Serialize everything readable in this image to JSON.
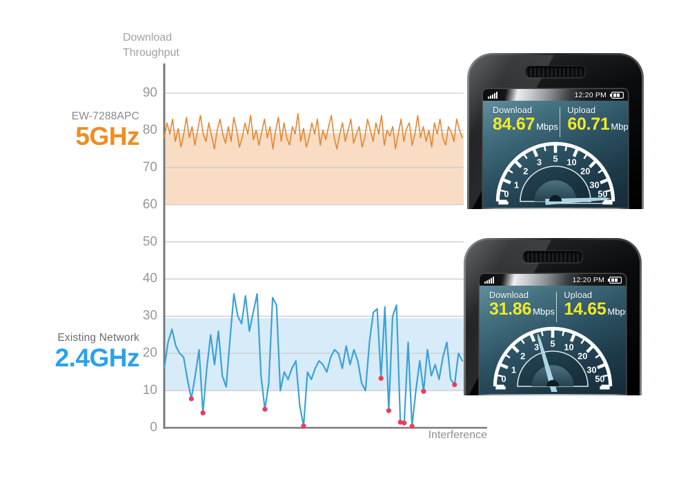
{
  "labels": {
    "y_axis_title_line1": "Download",
    "y_axis_title_line2": "Throughput",
    "x_axis_title": "Interference",
    "series1_model": "EW-7288APC",
    "series1_band": "5GHz",
    "series2_name": "Existing Network",
    "series2_band": "2.4GHz"
  },
  "colors": {
    "series1_accent": "#f18c1e",
    "series2_accent": "#2ba1ea",
    "grid": "#c9cccf",
    "axis": "#77797b",
    "tick_text": "#94979b",
    "value_text": "#f2e926"
  },
  "chart_data": {
    "type": "line",
    "ylabel": "Download Throughput",
    "xlabel": "Interference",
    "yticks": [
      0,
      10,
      20,
      30,
      40,
      50,
      60,
      70,
      80,
      90
    ],
    "ylim": [
      0,
      95
    ],
    "grid": "horizontal",
    "legend_position": "left",
    "series": [
      {
        "name": "EW-7288APC 5GHz",
        "color": "#e8842c",
        "line_width": 1.6,
        "fill_band": [
          60,
          79.3
        ],
        "fill_color": "#f8dcc4",
        "values": [
          78,
          82,
          79,
          83,
          77,
          80.5,
          75.5,
          79,
          83.5,
          78,
          81,
          76,
          80,
          84,
          79,
          77,
          82,
          78.5,
          75,
          80,
          83,
          79,
          76.5,
          81,
          77,
          83.5,
          80,
          75.5,
          78,
          82,
          79,
          84,
          77.5,
          80,
          76,
          79.5,
          83,
          78,
          81,
          75,
          80,
          83.5,
          77,
          82,
          78,
          76,
          81,
          79,
          84.5,
          77,
          80.5,
          75.5,
          78,
          82,
          79,
          83,
          76,
          80,
          77.5,
          81,
          84,
          78,
          75,
          79,
          82,
          77,
          80,
          83,
          76.5,
          79,
          81,
          75.5,
          78,
          83,
          80,
          77,
          82,
          79,
          84,
          76,
          80,
          78.5,
          81,
          75,
          79,
          83,
          77,
          80.5,
          82,
          76,
          79,
          84,
          78,
          81,
          77,
          80,
          75.5,
          82,
          79,
          83,
          78,
          76,
          81,
          79.5,
          77,
          83,
          80,
          78
        ]
      },
      {
        "name": "Existing Network 2.4GHz",
        "color": "#3aa1d9",
        "line_width": 2.2,
        "fill_band": [
          10,
          29.5
        ],
        "fill_color": "#d8ebf8",
        "values": [
          16,
          23,
          26.5,
          22,
          20,
          19,
          13,
          7.8,
          14,
          21,
          4,
          16,
          25,
          17,
          26,
          14,
          11,
          24,
          36,
          30,
          28,
          35.5,
          26,
          31,
          36,
          14,
          5,
          12,
          35,
          33,
          10,
          15,
          13,
          16,
          18,
          6,
          0.5,
          15,
          13,
          16,
          18,
          17,
          15,
          19,
          21,
          20,
          16,
          22,
          17,
          21,
          18,
          12,
          10,
          23,
          31,
          32,
          13.3,
          32.5,
          4.6,
          30,
          33,
          1.5,
          1.3,
          23,
          0.4,
          10,
          18,
          9.8,
          21,
          14,
          17,
          13,
          19,
          23,
          13,
          11.6,
          20,
          18
        ],
        "marker_indices": [
          7,
          10,
          26,
          36,
          56,
          58,
          61,
          62,
          64,
          67,
          75
        ],
        "marker_color": "#ee3a5f"
      }
    ]
  },
  "phones": [
    {
      "time": "12:20 PM",
      "download_label": "Download",
      "download_value": "84.67",
      "upload_label": "Upload",
      "upload_value": "60.71",
      "unit": "Mbps",
      "gauge": {
        "scale_labels": [
          0,
          1,
          2,
          3,
          5,
          10,
          20,
          30,
          50
        ],
        "needle_deg": 3
      }
    },
    {
      "time": "12:20 PM",
      "download_label": "Download",
      "download_value": "31.86",
      "upload_label": "Upload",
      "upload_value": "14.65",
      "unit": "Mbps",
      "gauge": {
        "scale_labels": [
          0,
          1,
          2,
          3,
          5,
          10,
          20,
          30,
          50
        ],
        "needle_deg": 106
      }
    }
  ]
}
